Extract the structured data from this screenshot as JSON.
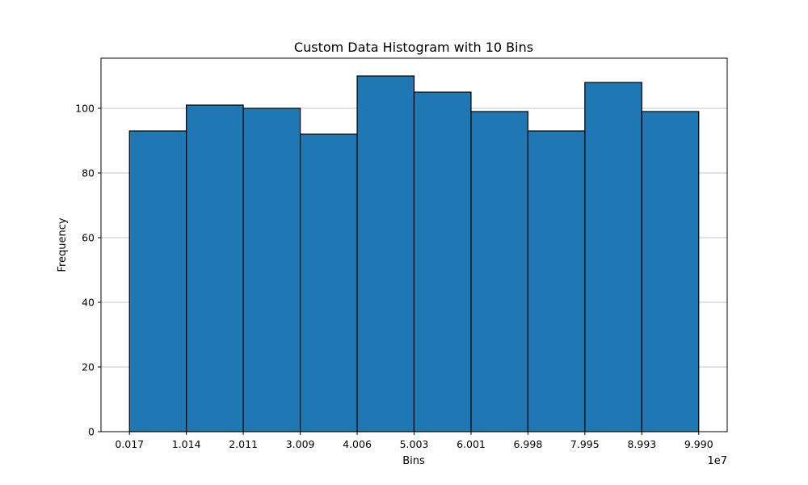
{
  "chart_data": {
    "type": "bar",
    "title": "Custom Data Histogram with 10 Bins",
    "xlabel": "Bins",
    "ylabel": "Frequency",
    "x_offset_label": "1e7",
    "bin_edges": [
      0.017,
      1.014,
      2.011,
      3.009,
      4.006,
      5.003,
      6.001,
      6.998,
      7.995,
      8.993,
      9.99
    ],
    "x_tick_labels": [
      "0.017",
      "1.014",
      "2.011",
      "3.009",
      "4.006",
      "5.003",
      "6.001",
      "6.998",
      "7.995",
      "8.993",
      "9.990"
    ],
    "values": [
      93,
      101,
      100,
      92,
      110,
      105,
      99,
      93,
      108,
      99
    ],
    "ylim": [
      0,
      115.5
    ],
    "y_ticks": [
      0,
      20,
      40,
      60,
      80,
      100
    ],
    "grid": "y",
    "bar_color": "#1f77b4",
    "edge_color": "#000000"
  }
}
